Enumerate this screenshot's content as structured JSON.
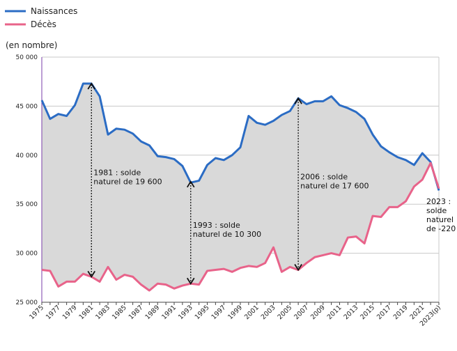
{
  "chart_data": {
    "type": "line",
    "title": "",
    "ylabel": "(en nombre)",
    "ylim": [
      25000,
      50000
    ],
    "yticks": [
      25000,
      30000,
      35000,
      40000,
      45000,
      50000
    ],
    "ytick_labels": [
      "25 000",
      "30 000",
      "35 000",
      "40 000",
      "45 000",
      "50 000"
    ],
    "grid": true,
    "legend": "top-left",
    "x": [
      "1975",
      "1976",
      "1977",
      "1978",
      "1979",
      "1980",
      "1981",
      "1982",
      "1983",
      "1984",
      "1985",
      "1986",
      "1987",
      "1988",
      "1989",
      "1990",
      "1991",
      "1992",
      "1993",
      "1994",
      "1995",
      "1996",
      "1997",
      "1998",
      "1999",
      "2000",
      "2001",
      "2002",
      "2003",
      "2004",
      "2005",
      "2006",
      "2007",
      "2008",
      "2009",
      "2010",
      "2011",
      "2012",
      "2013",
      "2014",
      "2015",
      "2016",
      "2017",
      "2018",
      "2019",
      "2020",
      "2021",
      "2022",
      "2023(p)"
    ],
    "xtick_labels": [
      "1975",
      "1977",
      "1979",
      "1981",
      "1983",
      "1985",
      "1987",
      "1989",
      "1991",
      "1993",
      "1995",
      "1997",
      "1999",
      "2001",
      "2003",
      "2005",
      "2007",
      "2009",
      "2011",
      "2013",
      "2015",
      "2017",
      "2019",
      "2021",
      "2023(p)"
    ],
    "series": [
      {
        "name": "Naissances",
        "color": "#2b6cc4",
        "values": [
          45600,
          43700,
          44200,
          44000,
          45100,
          47300,
          47300,
          46000,
          42100,
          42700,
          42600,
          42200,
          41400,
          41000,
          39900,
          39800,
          39600,
          38900,
          37200,
          37400,
          39000,
          39700,
          39500,
          40000,
          40800,
          44000,
          43300,
          43100,
          43500,
          44100,
          44500,
          45800,
          45200,
          45500,
          45500,
          46000,
          45100,
          44800,
          44400,
          43700,
          42100,
          40900,
          40300,
          39800,
          39500,
          39000,
          40200,
          39300,
          36400
        ]
      },
      {
        "name": "Décès",
        "color": "#e8638a",
        "values": [
          28300,
          28200,
          26600,
          27100,
          27100,
          27900,
          27600,
          27100,
          28600,
          27300,
          27800,
          27600,
          26800,
          26200,
          26900,
          26800,
          26400,
          26700,
          26900,
          26800,
          28200,
          28300,
          28400,
          28100,
          28500,
          28700,
          28600,
          29000,
          30600,
          28100,
          28600,
          28300,
          29000,
          29600,
          29800,
          30000,
          29800,
          31600,
          31700,
          31000,
          33800,
          33700,
          34700,
          34700,
          35300,
          36800,
          37500,
          39200,
          36600
        ]
      }
    ],
    "annotations": [
      {
        "year": "1981",
        "top": 47300,
        "bottom": 27600,
        "lines": [
          "1981 : solde",
          "naturel de 19 600"
        ]
      },
      {
        "year": "1993",
        "top": 37300,
        "bottom": 26900,
        "lines": [
          "1993 : solde",
          "naturel de 10 300"
        ]
      },
      {
        "year": "2006",
        "top": 45800,
        "bottom": 28300,
        "lines": [
          "2006 : solde",
          "naturel de 17 600"
        ]
      },
      {
        "year": "2023(p)",
        "top": null,
        "bottom": null,
        "lines": [
          "2023 :",
          "solde",
          "naturel",
          "de -220"
        ]
      }
    ],
    "fill_between_color": "#d9d9d9"
  }
}
